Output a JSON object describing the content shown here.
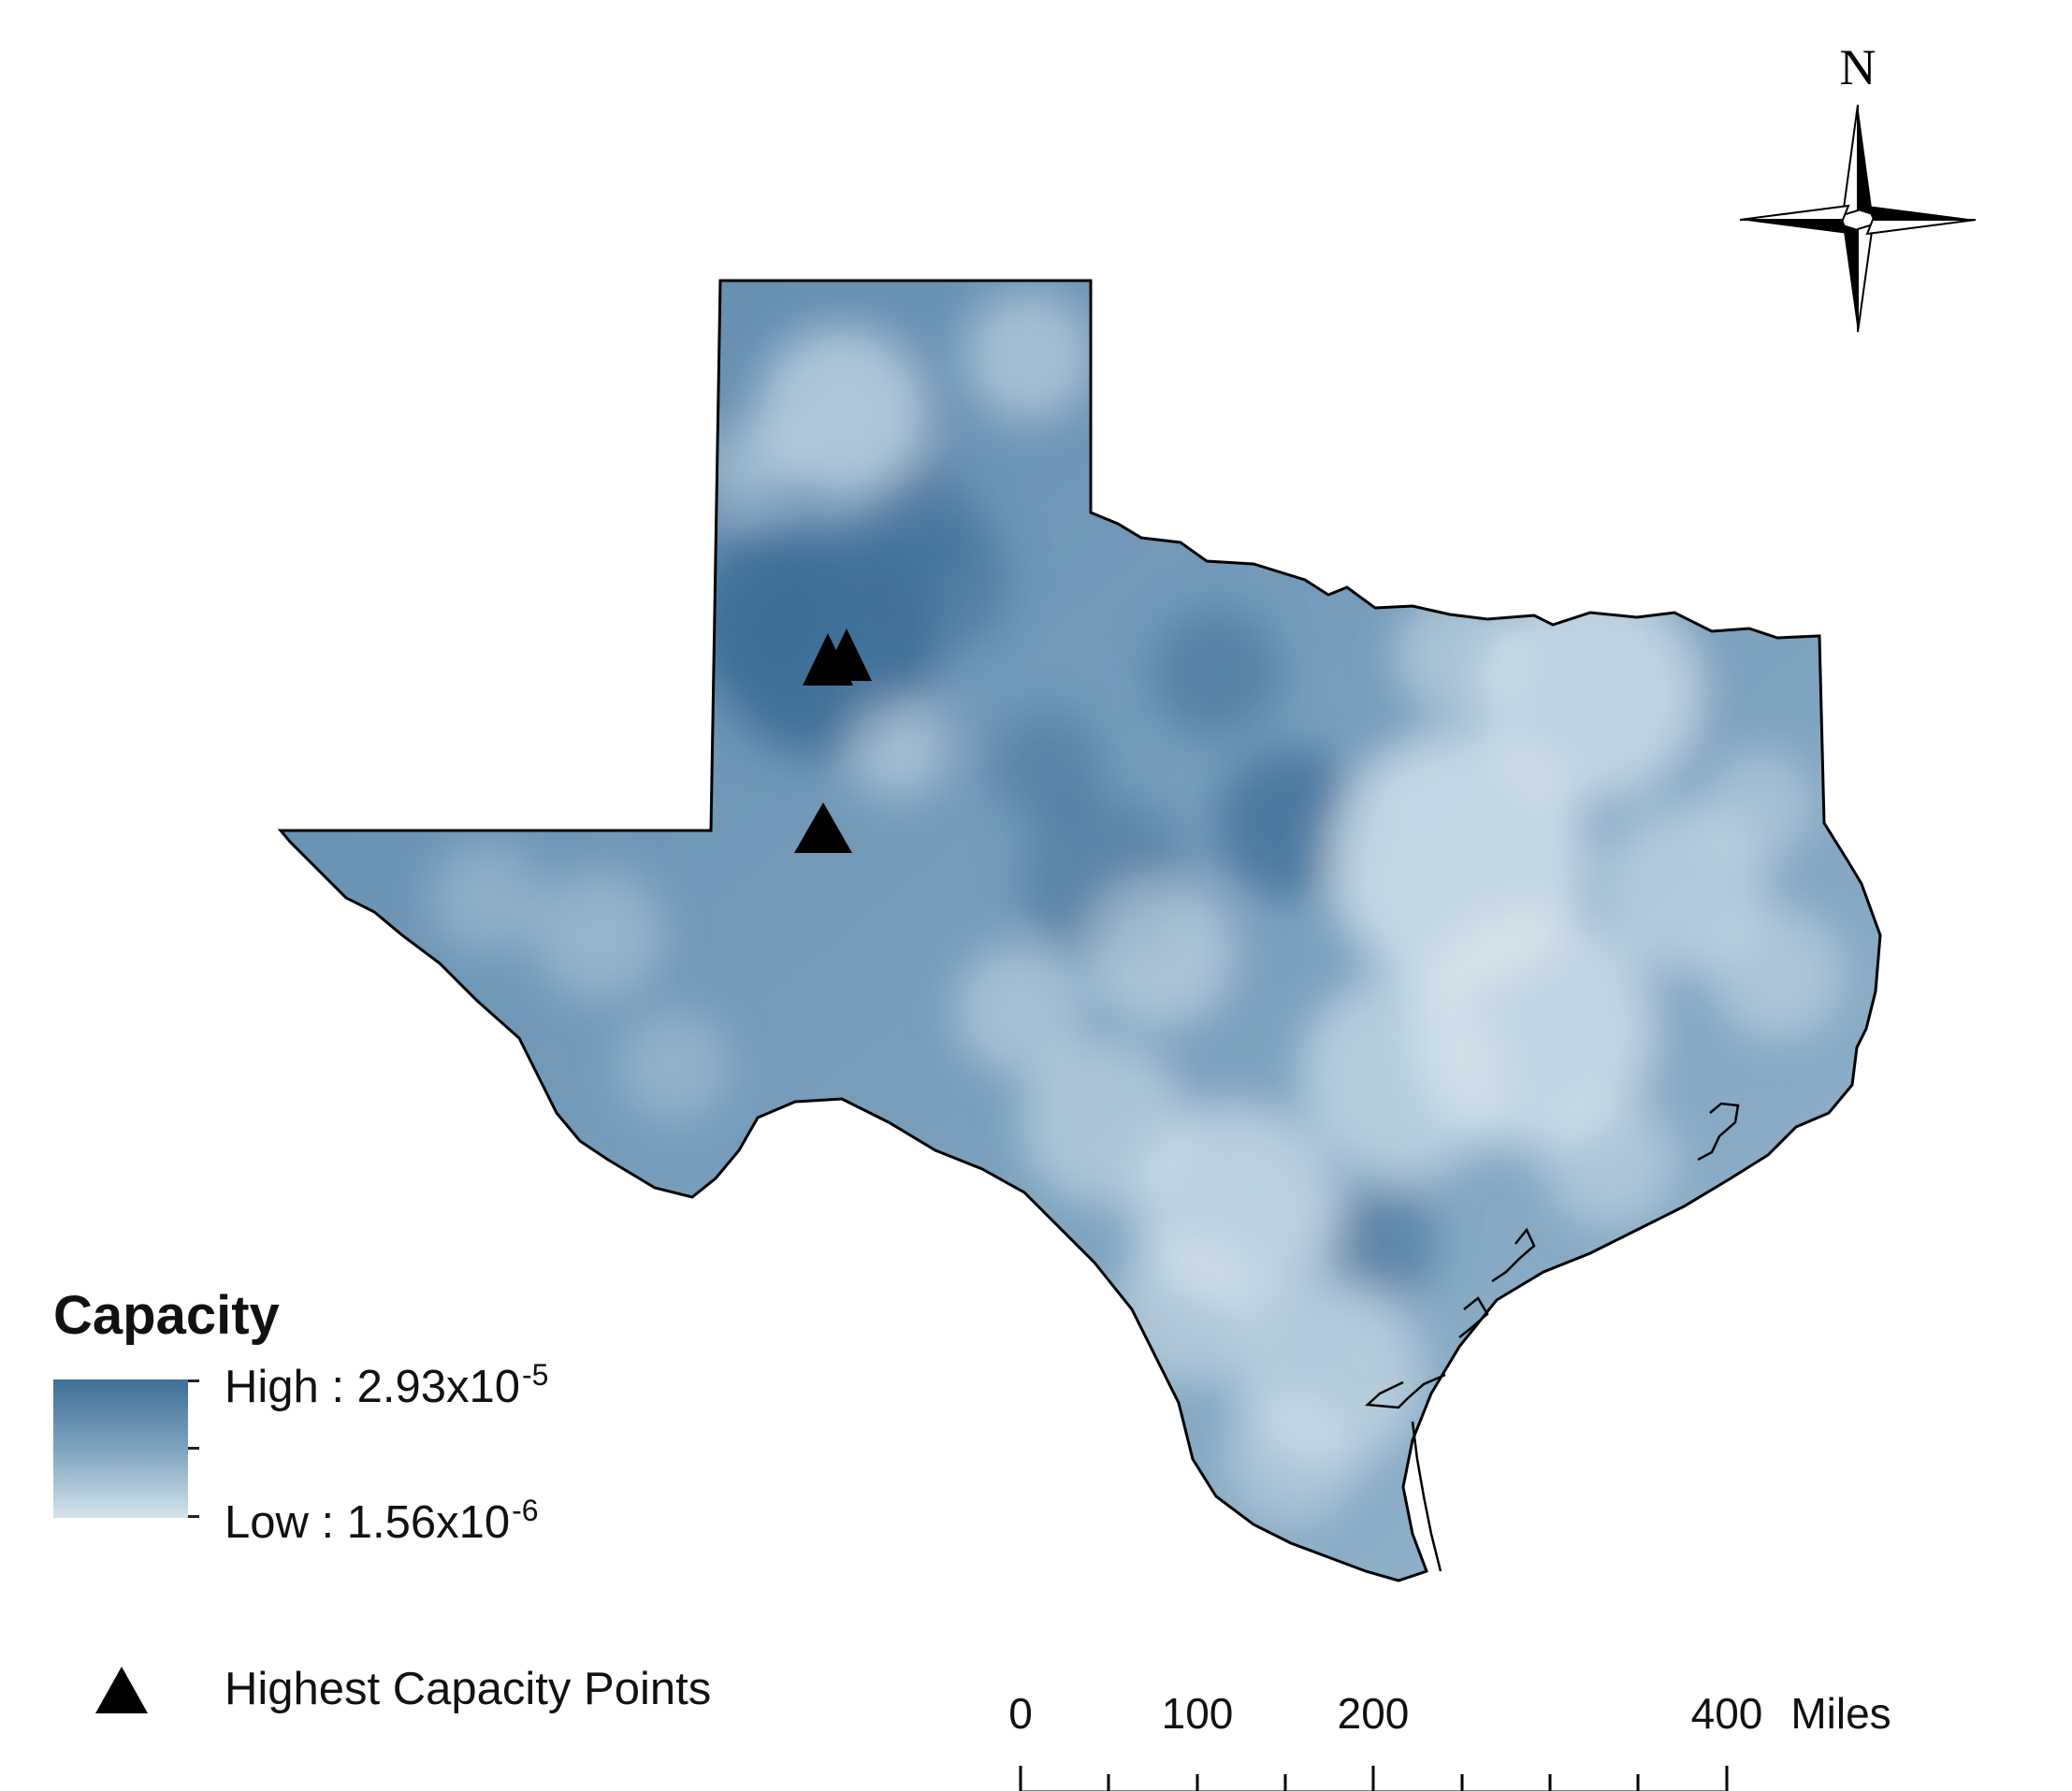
{
  "north_arrow": {
    "label": "N"
  },
  "legend": {
    "title": "Capacity",
    "high_label": "High : 2.93x10",
    "high_exponent": "-5",
    "low_label": "Low : 1.56x10",
    "low_exponent": "-6",
    "ramp_colors": {
      "high": "#3f6e96",
      "low": "#d6e4ec"
    },
    "points_label": "Highest Capacity Points"
  },
  "scale_bar": {
    "tick_labels": [
      "0",
      "100",
      "200",
      "400"
    ],
    "unit": "Miles"
  },
  "colors": {
    "state_base": "#6d95b6",
    "state_outline": "#000000",
    "dark_patch": "#3f6e96",
    "light_patch": "#dbe7ee",
    "marker": "#000000"
  }
}
